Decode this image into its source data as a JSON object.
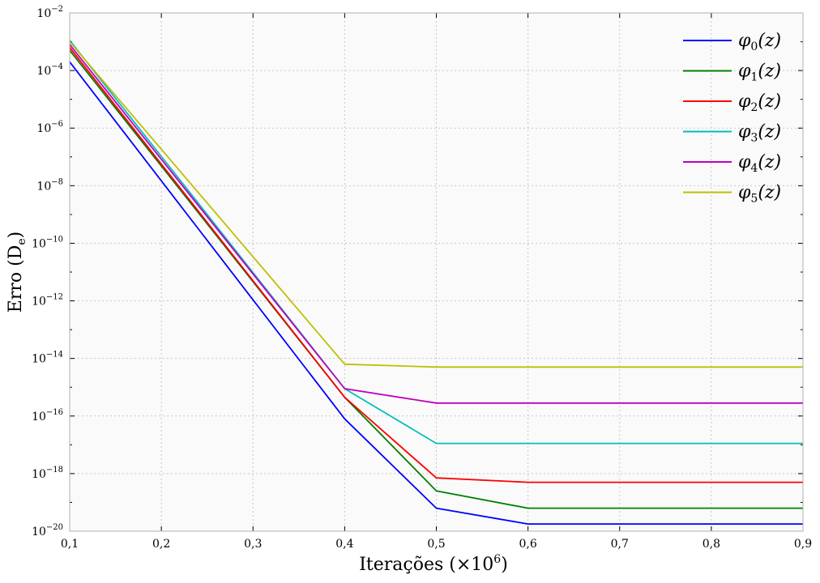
{
  "chart_data": {
    "type": "line",
    "title": "",
    "xlabel": "Iterações (×10",
    "xlabel_sup": "6",
    "xlabel_close": ")",
    "ylabel": "Erro (D",
    "ylabel_sub": "e",
    "ylabel_close": ")",
    "y_scale": "log",
    "xlim": [
      0.1,
      0.9
    ],
    "ylim_exp": [
      -20,
      -2
    ],
    "x_tick_values": [
      0.1,
      0.2,
      0.3,
      0.4,
      0.5,
      0.6,
      0.7,
      0.8,
      0.9
    ],
    "x_tick_labels": [
      "0,1",
      "0,2",
      "0,3",
      "0,4",
      "0,5",
      "0,6",
      "0,7",
      "0,8",
      "0,9"
    ],
    "y_tick_exponents": [
      -20,
      -18,
      -16,
      -14,
      -12,
      -10,
      -8,
      -6,
      -4,
      -2
    ],
    "y_tick_base": "10",
    "y_tick_exp_labels": [
      "−20",
      "−18",
      "−16",
      "−14",
      "−12",
      "−10",
      "−8",
      "−6",
      "−4",
      "−2"
    ],
    "grid": true,
    "legend_position": "top-right",
    "x": [
      0.1,
      0.4,
      0.5,
      0.6,
      0.7,
      0.8,
      0.9
    ],
    "series": [
      {
        "name": "φ",
        "sub": "0",
        "arg": "(z)",
        "color": "#0000ff",
        "log10_values": [
          -3.7,
          -16.1,
          -19.2,
          -19.75,
          -19.75,
          -19.75,
          -19.75
        ]
      },
      {
        "name": "φ",
        "sub": "1",
        "arg": "(z)",
        "color": "#008000",
        "log10_values": [
          -3.3,
          -15.35,
          -18.6,
          -19.2,
          -19.2,
          -19.2,
          -19.2
        ]
      },
      {
        "name": "φ",
        "sub": "2",
        "arg": "(z)",
        "color": "#ff0000",
        "log10_values": [
          -3.2,
          -15.35,
          -18.15,
          -18.3,
          -18.3,
          -18.3,
          -18.3
        ]
      },
      {
        "name": "φ",
        "sub": "3",
        "arg": "(z)",
        "color": "#00bfbf",
        "log10_values": [
          -2.95,
          -15.05,
          -16.95,
          -16.95,
          -16.95,
          -16.95,
          -16.95
        ]
      },
      {
        "name": "φ",
        "sub": "4",
        "arg": "(z)",
        "color": "#bf00bf",
        "log10_values": [
          -3.1,
          -15.05,
          -15.55,
          -15.55,
          -15.55,
          -15.55,
          -15.55
        ]
      },
      {
        "name": "φ",
        "sub": "5",
        "arg": "(z)",
        "color": "#bfbf00",
        "log10_values": [
          -3.0,
          -14.2,
          -14.3,
          -14.3,
          -14.3,
          -14.3,
          -14.3
        ]
      }
    ]
  }
}
